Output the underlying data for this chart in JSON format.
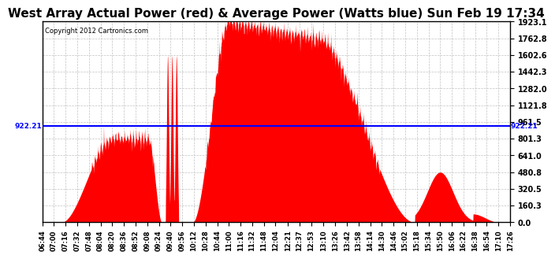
{
  "title": "West Array Actual Power (red) & Average Power (Watts blue) Sun Feb 19 17:34",
  "copyright": "Copyright 2012 Cartronics.com",
  "average_power": 922.21,
  "ymax": 1923.1,
  "ymin": 0.0,
  "yticks": [
    0.0,
    160.3,
    320.5,
    480.8,
    641.0,
    801.3,
    961.5,
    1121.8,
    1282.0,
    1442.3,
    1602.6,
    1762.8,
    1923.1
  ],
  "ytick_labels": [
    "0.0",
    "160.3",
    "320.5",
    "480.8",
    "641.0",
    "801.3",
    "961.5",
    "1121.8",
    "1282.0",
    "1442.3",
    "1602.6",
    "1762.8",
    "1923.1"
  ],
  "fill_color": "#FF0000",
  "line_color": "#0000FF",
  "background_color": "#FFFFFF",
  "grid_color": "#BBBBBB",
  "title_fontsize": 11,
  "avg_label": "922.21",
  "xtick_labels": [
    "06:44",
    "07:00",
    "07:16",
    "07:32",
    "07:48",
    "08:04",
    "08:20",
    "08:36",
    "08:52",
    "09:08",
    "09:24",
    "09:40",
    "09:56",
    "10:12",
    "10:28",
    "10:44",
    "11:00",
    "11:16",
    "11:32",
    "11:48",
    "12:04",
    "12:21",
    "12:37",
    "12:53",
    "13:10",
    "13:26",
    "13:42",
    "13:58",
    "14:14",
    "14:30",
    "14:46",
    "15:02",
    "15:18",
    "15:34",
    "15:50",
    "16:06",
    "16:22",
    "16:38",
    "16:54",
    "17:10",
    "17:26"
  ]
}
